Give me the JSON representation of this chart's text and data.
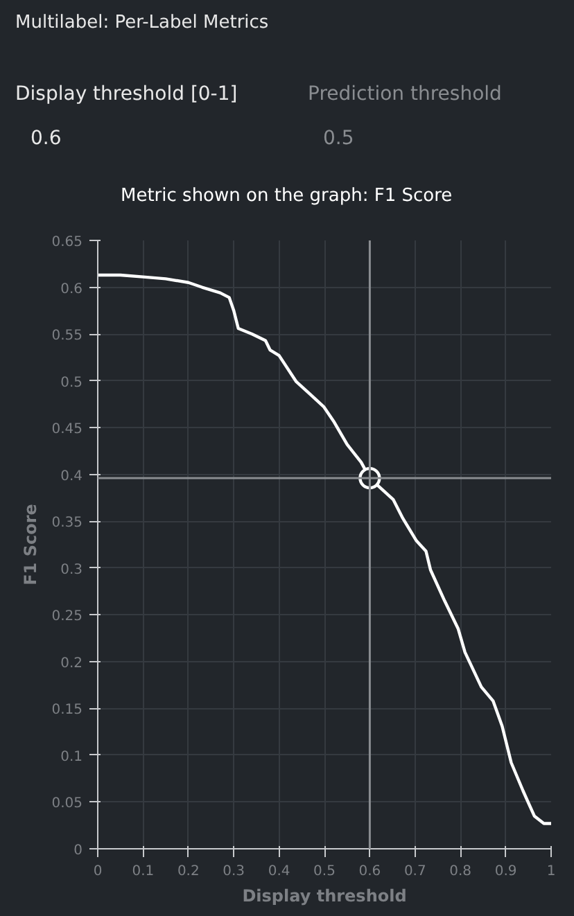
{
  "chart_data": {
    "type": "line",
    "xlabel": "Display threshold",
    "ylabel": "F1 Score",
    "annotations": [
      "Multilabel: Per-Label Metrics",
      "Display threshold [0-1]",
      "0.6",
      "Prediction threshold",
      "0.5",
      "Metric shown on the graph: F1 Score"
    ],
    "xlim": [
      0,
      1
    ],
    "ylim": [
      0,
      0.65
    ],
    "xticks": [
      0,
      0.1,
      0.2,
      0.3,
      0.4,
      0.5,
      0.6,
      0.7,
      0.8,
      0.9,
      1
    ],
    "yticks": [
      0,
      0.05,
      0.1,
      0.15,
      0.2,
      0.25,
      0.3,
      0.35,
      0.4,
      0.45,
      0.5,
      0.55,
      0.6,
      0.65
    ],
    "grid": true,
    "marker": "none",
    "line_style": "solid",
    "series": [
      {
        "color": "#ffffff",
        "x": [
          0,
          0.05,
          0.1,
          0.15,
          0.2,
          0.23,
          0.27,
          0.29,
          0.3,
          0.31,
          0.34,
          0.37,
          0.38,
          0.4,
          0.438,
          0.47,
          0.499,
          0.52,
          0.55,
          0.581,
          0.6,
          0.652,
          0.673,
          0.703,
          0.724,
          0.734,
          0.765,
          0.795,
          0.81,
          0.846,
          0.872,
          0.892,
          0.912,
          0.938,
          0.963,
          0.984,
          1
        ],
        "values": [
          0.613,
          0.613,
          0.611,
          0.609,
          0.605,
          0.6,
          0.594,
          0.589,
          0.575,
          0.556,
          0.55,
          0.543,
          0.533,
          0.527,
          0.499,
          0.485,
          0.472,
          0.457,
          0.432,
          0.413,
          0.396,
          0.373,
          0.353,
          0.329,
          0.318,
          0.298,
          0.265,
          0.235,
          0.21,
          0.173,
          0.158,
          0.131,
          0.092,
          0.062,
          0.035,
          0.027,
          0.027
        ]
      },
      {
        "type": "scatter",
        "marker": "circle",
        "color": "#ffffff",
        "x": [
          0.6
        ],
        "values": [
          0.396
        ]
      }
    ],
    "ref_lines": [
      {
        "axis": "x",
        "value": 0.6,
        "color": "#8a8d91"
      },
      {
        "axis": "y",
        "value": 0.396,
        "color": "#8a8d91"
      }
    ]
  }
}
